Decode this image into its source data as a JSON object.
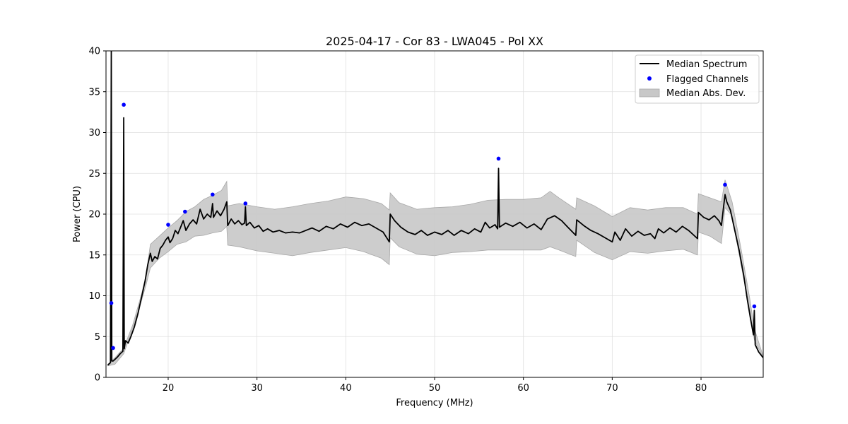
{
  "chart_data": {
    "type": "line",
    "title": "2025-04-17 - Cor 83 - LWA045 - Pol XX",
    "xlabel": "Frequency (MHz)",
    "ylabel": "Power (CPU)",
    "xlim": [
      13,
      87
    ],
    "ylim": [
      0,
      40
    ],
    "xticks": [
      20,
      30,
      40,
      50,
      60,
      70,
      80
    ],
    "yticks": [
      0,
      5,
      10,
      15,
      20,
      25,
      30,
      35,
      40
    ],
    "grid": true,
    "legend_position": "top-right",
    "legend": [
      "Median Spectrum",
      "Flagged Channels",
      "Median Abs. Dev."
    ],
    "colors": {
      "line": "#000000",
      "flagged": "#0000ff",
      "band": "#b0b0b0",
      "grid": "#e0e0e0"
    },
    "series": [
      {
        "name": "Median Spectrum",
        "kind": "line",
        "points": [
          [
            13.2,
            1.5
          ],
          [
            13.5,
            1.8
          ],
          [
            13.6,
            40
          ],
          [
            13.65,
            2.0
          ],
          [
            13.8,
            2.0
          ],
          [
            14.0,
            2.2
          ],
          [
            14.3,
            2.5
          ],
          [
            14.6,
            2.9
          ],
          [
            14.9,
            3.2
          ],
          [
            15.0,
            31.8
          ],
          [
            15.05,
            3.5
          ],
          [
            15.2,
            4.5
          ],
          [
            15.5,
            4.2
          ],
          [
            15.8,
            5.0
          ],
          [
            16.2,
            6.2
          ],
          [
            16.6,
            7.8
          ],
          [
            17.0,
            9.8
          ],
          [
            17.4,
            11.8
          ],
          [
            17.7,
            13.8
          ],
          [
            18.0,
            15.2
          ],
          [
            18.2,
            14.2
          ],
          [
            18.5,
            14.8
          ],
          [
            18.8,
            14.5
          ],
          [
            19.1,
            15.8
          ],
          [
            19.4,
            16.2
          ],
          [
            19.7,
            16.8
          ],
          [
            20.0,
            17.2
          ],
          [
            20.2,
            16.5
          ],
          [
            20.5,
            17.0
          ],
          [
            20.8,
            18.0
          ],
          [
            21.1,
            17.6
          ],
          [
            21.4,
            18.4
          ],
          [
            21.7,
            19.2
          ],
          [
            22.0,
            18.0
          ],
          [
            22.4,
            18.8
          ],
          [
            22.8,
            19.3
          ],
          [
            23.2,
            18.8
          ],
          [
            23.6,
            20.6
          ],
          [
            24.0,
            19.4
          ],
          [
            24.4,
            20.0
          ],
          [
            24.8,
            19.6
          ],
          [
            25.0,
            21.3
          ],
          [
            25.1,
            19.6
          ],
          [
            25.5,
            20.4
          ],
          [
            25.9,
            19.8
          ],
          [
            26.3,
            20.6
          ],
          [
            26.6,
            21.5
          ],
          [
            26.7,
            18.6
          ],
          [
            27.1,
            19.4
          ],
          [
            27.5,
            18.8
          ],
          [
            27.9,
            19.2
          ],
          [
            28.3,
            18.7
          ],
          [
            28.6,
            18.9
          ],
          [
            28.7,
            20.9
          ],
          [
            28.8,
            18.6
          ],
          [
            29.2,
            19.0
          ],
          [
            29.7,
            18.3
          ],
          [
            30.2,
            18.6
          ],
          [
            30.7,
            17.9
          ],
          [
            31.2,
            18.2
          ],
          [
            31.8,
            17.8
          ],
          [
            32.5,
            18.0
          ],
          [
            33.2,
            17.7
          ],
          [
            34.0,
            17.8
          ],
          [
            34.8,
            17.7
          ],
          [
            35.5,
            18.0
          ],
          [
            36.2,
            18.3
          ],
          [
            37.0,
            17.9
          ],
          [
            37.8,
            18.5
          ],
          [
            38.6,
            18.2
          ],
          [
            39.4,
            18.8
          ],
          [
            40.2,
            18.4
          ],
          [
            41.0,
            19.0
          ],
          [
            41.8,
            18.6
          ],
          [
            42.6,
            18.8
          ],
          [
            43.4,
            18.3
          ],
          [
            44.2,
            17.8
          ],
          [
            44.9,
            16.6
          ],
          [
            45.0,
            20.0
          ],
          [
            45.5,
            19.2
          ],
          [
            46.2,
            18.4
          ],
          [
            47.0,
            17.8
          ],
          [
            47.8,
            17.5
          ],
          [
            48.5,
            18.0
          ],
          [
            49.2,
            17.4
          ],
          [
            50.0,
            17.8
          ],
          [
            50.8,
            17.5
          ],
          [
            51.5,
            18.0
          ],
          [
            52.2,
            17.4
          ],
          [
            53.0,
            18.0
          ],
          [
            53.8,
            17.6
          ],
          [
            54.5,
            18.2
          ],
          [
            55.2,
            17.8
          ],
          [
            55.7,
            19.0
          ],
          [
            56.2,
            18.3
          ],
          [
            56.8,
            18.7
          ],
          [
            57.1,
            18.2
          ],
          [
            57.2,
            25.6
          ],
          [
            57.3,
            18.4
          ],
          [
            58.0,
            18.9
          ],
          [
            58.8,
            18.5
          ],
          [
            59.6,
            19.0
          ],
          [
            60.4,
            18.3
          ],
          [
            61.2,
            18.8
          ],
          [
            62.0,
            18.1
          ],
          [
            62.7,
            19.4
          ],
          [
            63.5,
            19.8
          ],
          [
            64.3,
            19.2
          ],
          [
            65.0,
            18.4
          ],
          [
            65.9,
            17.4
          ],
          [
            66.0,
            19.3
          ],
          [
            66.8,
            18.6
          ],
          [
            67.6,
            18.0
          ],
          [
            68.4,
            17.6
          ],
          [
            69.2,
            17.1
          ],
          [
            70.0,
            16.6
          ],
          [
            70.3,
            17.8
          ],
          [
            70.9,
            16.8
          ],
          [
            71.5,
            18.2
          ],
          [
            72.2,
            17.3
          ],
          [
            72.9,
            17.9
          ],
          [
            73.6,
            17.4
          ],
          [
            74.3,
            17.6
          ],
          [
            74.8,
            17.0
          ],
          [
            75.2,
            18.2
          ],
          [
            75.8,
            17.7
          ],
          [
            76.5,
            18.3
          ],
          [
            77.2,
            17.8
          ],
          [
            77.9,
            18.5
          ],
          [
            78.6,
            18.0
          ],
          [
            79.2,
            17.4
          ],
          [
            79.6,
            17.0
          ],
          [
            79.7,
            20.2
          ],
          [
            80.3,
            19.6
          ],
          [
            80.9,
            19.3
          ],
          [
            81.5,
            19.8
          ],
          [
            82.0,
            19.2
          ],
          [
            82.3,
            18.6
          ],
          [
            82.5,
            20.5
          ],
          [
            82.7,
            22.4
          ],
          [
            82.9,
            21.5
          ],
          [
            83.3,
            20.5
          ],
          [
            83.8,
            18.0
          ],
          [
            84.3,
            15.5
          ],
          [
            84.8,
            12.5
          ],
          [
            85.2,
            9.6
          ],
          [
            85.6,
            7.0
          ],
          [
            85.9,
            5.2
          ],
          [
            86.0,
            8.2
          ],
          [
            86.1,
            4.0
          ],
          [
            86.5,
            3.1
          ],
          [
            87.0,
            2.4
          ]
        ]
      },
      {
        "name": "Flagged Channels",
        "kind": "scatter",
        "points": [
          [
            13.6,
            9.1
          ],
          [
            13.8,
            3.6
          ],
          [
            15.0,
            33.4
          ],
          [
            20.0,
            18.7
          ],
          [
            21.9,
            20.3
          ],
          [
            25.0,
            22.4
          ],
          [
            28.7,
            21.3
          ],
          [
            57.2,
            26.8
          ],
          [
            82.7,
            23.6
          ],
          [
            86.0,
            8.7
          ]
        ]
      },
      {
        "name": "Median Abs. Dev.",
        "kind": "band",
        "x": [
          13.2,
          14.0,
          15.0,
          16.0,
          17.0,
          17.5,
          18.0,
          19.0,
          20.0,
          21.0,
          22.0,
          23.0,
          24.0,
          25.0,
          26.0,
          26.6,
          26.7,
          28.0,
          30.0,
          32.0,
          34.0,
          36.0,
          38.0,
          40.0,
          42.0,
          44.0,
          44.9,
          45.0,
          46.0,
          48.0,
          50.0,
          52.0,
          54.0,
          56.0,
          58.0,
          60.0,
          62.0,
          63.0,
          64.0,
          65.9,
          66.0,
          68.0,
          70.0,
          72.0,
          74.0,
          76.0,
          78.0,
          79.6,
          79.7,
          81.0,
          82.3,
          82.7,
          83.5,
          84.5,
          85.5,
          86.0,
          87.0
        ],
        "upper": [
          1.6,
          2.4,
          3.6,
          6.4,
          10.2,
          12.5,
          16.3,
          17.3,
          18.3,
          19.2,
          20.3,
          20.9,
          21.8,
          22.3,
          22.9,
          24.0,
          21.0,
          21.3,
          20.9,
          20.6,
          20.9,
          21.3,
          21.6,
          22.1,
          21.9,
          21.3,
          20.5,
          22.6,
          21.4,
          20.6,
          20.8,
          20.9,
          21.2,
          21.7,
          21.8,
          21.8,
          22.0,
          22.8,
          22.0,
          20.6,
          22.0,
          21.0,
          19.7,
          20.8,
          20.5,
          20.8,
          20.8,
          20.0,
          22.5,
          22.0,
          21.5,
          24.2,
          21.5,
          15.8,
          9.6,
          6.0,
          2.6
        ],
        "lower": [
          1.4,
          1.6,
          2.9,
          6.0,
          9.4,
          11.3,
          13.4,
          14.6,
          15.4,
          16.3,
          16.6,
          17.3,
          17.4,
          17.7,
          17.9,
          18.5,
          16.2,
          16.0,
          15.5,
          15.2,
          14.9,
          15.3,
          15.6,
          15.9,
          15.4,
          14.6,
          13.8,
          17.1,
          16.0,
          15.1,
          14.9,
          15.3,
          15.4,
          15.6,
          15.6,
          15.6,
          15.6,
          16.0,
          15.6,
          14.8,
          16.8,
          15.3,
          14.4,
          15.4,
          15.2,
          15.5,
          15.7,
          15.0,
          17.8,
          17.3,
          16.4,
          20.8,
          19.8,
          13.8,
          8.2,
          4.6,
          2.4
        ]
      }
    ]
  }
}
